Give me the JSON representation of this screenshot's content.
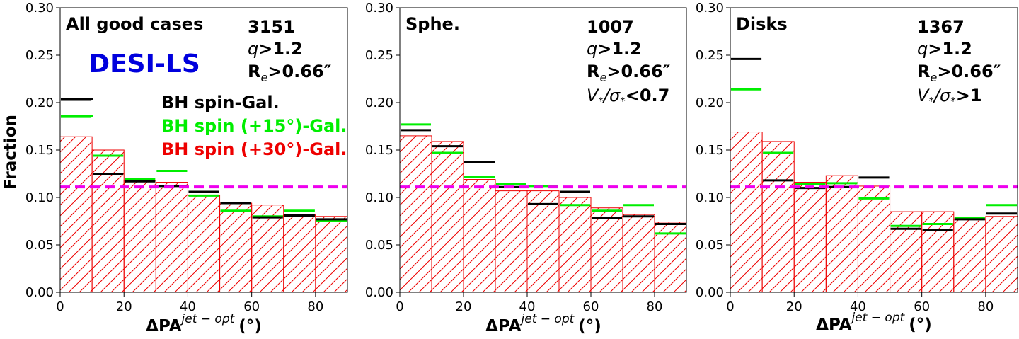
{
  "figure": {
    "ylabel": "Fraction",
    "xlabel_main": "ΔPA",
    "xlabel_sup": "jet − opt",
    "xlabel_unit": "(°)",
    "legend": {
      "items": [
        {
          "label": "BH spin-Gal.",
          "color": "#000000"
        },
        {
          "label": "BH spin (+15°)-Gal.",
          "color": "#00ee00"
        },
        {
          "label": "BH spin (+30°)-Gal.",
          "color": "#ee0000"
        }
      ]
    },
    "survey_label": "DESI-LS",
    "colors": {
      "black": "#000000",
      "green": "#00ee00",
      "red": "#ee0000",
      "magenta": "#ee00ee",
      "survey_blue": "#0000dd"
    }
  },
  "chart_data": [
    {
      "type": "bar",
      "panel": "all",
      "title": "All good cases",
      "count": "3151",
      "cut_q": "q>1.2",
      "cut_re": "Re>0.66″",
      "cut_v": "",
      "bin_edges": [
        0,
        10,
        20,
        30,
        40,
        50,
        60,
        70,
        80,
        90
      ],
      "xticks": [
        0,
        20,
        40,
        60,
        80
      ],
      "xlim": [
        0,
        90
      ],
      "ylim": [
        0,
        0.3
      ],
      "yticks": [
        "0.00",
        "0.05",
        "0.10",
        "0.15",
        "0.20",
        "0.25",
        "0.30"
      ],
      "series": [
        {
          "name": "BH spin-Gal.",
          "style": "step-black",
          "values": [
            0.203,
            0.125,
            0.117,
            0.112,
            0.106,
            0.094,
            0.079,
            0.081,
            0.077
          ]
        },
        {
          "name": "BH spin (+15°)-Gal.",
          "style": "step-green",
          "values": [
            0.185,
            0.144,
            0.119,
            0.128,
            0.102,
            0.086,
            0.08,
            0.086,
            0.075
          ]
        },
        {
          "name": "BH spin (+30°)-Gal.",
          "style": "hatched-red",
          "values": [
            0.164,
            0.15,
            0.118,
            0.116,
            0.102,
            0.094,
            0.092,
            0.082,
            0.08
          ]
        }
      ],
      "uniform_line": 0.1111
    },
    {
      "type": "bar",
      "panel": "sphe",
      "title": "Sphe.",
      "count": "1007",
      "cut_q": "q>1.2",
      "cut_re": "Re>0.66″",
      "cut_v": "V*/σ*<0.7",
      "bin_edges": [
        0,
        10,
        20,
        30,
        40,
        50,
        60,
        70,
        80,
        90
      ],
      "xticks": [
        0,
        20,
        40,
        60,
        80
      ],
      "xlim": [
        0,
        90
      ],
      "ylim": [
        0,
        0.3
      ],
      "yticks": [
        "0.00",
        "0.05",
        "0.10",
        "0.15",
        "0.20",
        "0.25",
        "0.30"
      ],
      "series": [
        {
          "name": "BH spin-Gal.",
          "style": "step-black",
          "values": [
            0.171,
            0.154,
            0.137,
            0.111,
            0.093,
            0.106,
            0.078,
            0.08,
            0.072
          ]
        },
        {
          "name": "BH spin (+15°)-Gal.",
          "style": "step-green",
          "values": [
            0.177,
            0.147,
            0.122,
            0.114,
            0.112,
            0.092,
            0.086,
            0.092,
            0.062
          ]
        },
        {
          "name": "BH spin (+30°)-Gal.",
          "style": "hatched-red",
          "values": [
            0.165,
            0.159,
            0.119,
            0.107,
            0.107,
            0.1,
            0.089,
            0.082,
            0.074
          ]
        }
      ],
      "uniform_line": 0.1111
    },
    {
      "type": "bar",
      "panel": "disks",
      "title": "Disks",
      "count": "1367",
      "cut_q": "q>1.2",
      "cut_re": "Re>0.66″",
      "cut_v": "V*/σ*>1",
      "bin_edges": [
        0,
        10,
        20,
        30,
        40,
        50,
        60,
        70,
        80,
        90
      ],
      "xticks": [
        0,
        20,
        40,
        60,
        80
      ],
      "xlim": [
        0,
        90
      ],
      "ylim": [
        0,
        0.3
      ],
      "yticks": [
        "0.00",
        "0.05",
        "0.10",
        "0.15",
        "0.20",
        "0.25",
        "0.30"
      ],
      "series": [
        {
          "name": "BH spin-Gal.",
          "style": "step-black",
          "values": [
            0.246,
            0.118,
            0.11,
            0.111,
            0.121,
            0.067,
            0.066,
            0.077,
            0.083
          ]
        },
        {
          "name": "BH spin (+15°)-Gal.",
          "style": "step-green",
          "values": [
            0.214,
            0.147,
            0.114,
            0.115,
            0.099,
            0.07,
            0.072,
            0.078,
            0.092
          ]
        },
        {
          "name": "BH spin (+30°)-Gal.",
          "style": "hatched-red",
          "values": [
            0.169,
            0.159,
            0.116,
            0.123,
            0.112,
            0.085,
            0.085,
            0.077,
            0.08
          ]
        }
      ],
      "uniform_line": 0.1111
    }
  ]
}
